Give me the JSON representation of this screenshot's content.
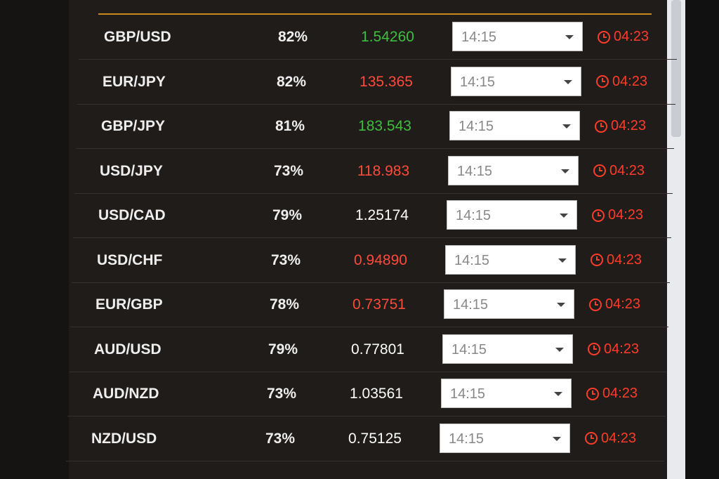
{
  "rows": [
    {
      "asset": "GBP/USD",
      "payout": "82%",
      "rate": "1.54260",
      "rate_color": "#3fbf3f",
      "expiry": "14:15",
      "timer": "04:23"
    },
    {
      "asset": "EUR/JPY",
      "payout": "82%",
      "rate": "135.365",
      "rate_color": "#ff4a3a",
      "expiry": "14:15",
      "timer": "04:23"
    },
    {
      "asset": "GBP/JPY",
      "payout": "81%",
      "rate": "183.543",
      "rate_color": "#3fbf3f",
      "expiry": "14:15",
      "timer": "04:23"
    },
    {
      "asset": "USD/JPY",
      "payout": "73%",
      "rate": "118.983",
      "rate_color": "#ff4a3a",
      "expiry": "14:15",
      "timer": "04:23"
    },
    {
      "asset": "USD/CAD",
      "payout": "79%",
      "rate": "1.25174",
      "rate_color": "#ffffff",
      "expiry": "14:15",
      "timer": "04:23"
    },
    {
      "asset": "USD/CHF",
      "payout": "73%",
      "rate": "0.94890",
      "rate_color": "#ff4a3a",
      "expiry": "14:15",
      "timer": "04:23"
    },
    {
      "asset": "EUR/GBP",
      "payout": "78%",
      "rate": "0.73751",
      "rate_color": "#ff4a3a",
      "expiry": "14:15",
      "timer": "04:23"
    },
    {
      "asset": "AUD/USD",
      "payout": "79%",
      "rate": "0.77801",
      "rate_color": "#ffffff",
      "expiry": "14:15",
      "timer": "04:23"
    },
    {
      "asset": "AUD/NZD",
      "payout": "73%",
      "rate": "1.03561",
      "rate_color": "#ffffff",
      "expiry": "14:15",
      "timer": "04:23"
    },
    {
      "asset": "NZD/USD",
      "payout": "73%",
      "rate": "0.75125",
      "rate_color": "#ffffff",
      "expiry": "14:15",
      "timer": "04:23"
    }
  ]
}
